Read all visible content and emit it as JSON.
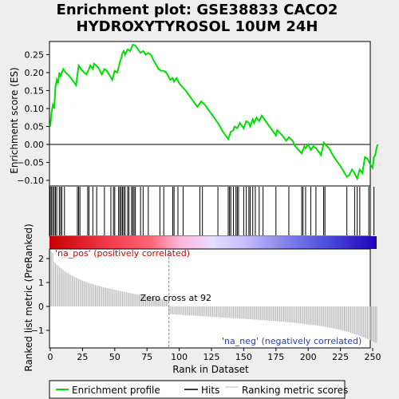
{
  "chart_data": {
    "type": "line",
    "title_line1": "Enrichment plot: GSE38833 CACO2",
    "title_line2": "HYDROXYTYROSOL 10UM 24H",
    "ylabel_top": "Enrichment score (ES)",
    "ylabel_bottom": "Ranked list metric (PreRanked)",
    "xlabel": "Rank in Dataset",
    "xlim": [
      0,
      250
    ],
    "ylim_top": [
      -0.12,
      0.29
    ],
    "ylim_bottom": [
      -1.75,
      2.45
    ],
    "yticks_top": [
      -0.1,
      -0.05,
      0.0,
      0.05,
      0.1,
      0.15,
      0.2,
      0.25
    ],
    "ytick_labels_top": [
      "−0.10",
      "−0.05",
      "0.00",
      "0.05",
      "0.10",
      "0.15",
      "0.20",
      "0.25"
    ],
    "yticks_bottom": [
      -1,
      0,
      1,
      2
    ],
    "ytick_labels_bottom": [
      "−1",
      "0",
      "1",
      "2"
    ],
    "xticks": [
      0,
      25,
      50,
      75,
      100,
      125,
      150,
      175,
      200,
      225,
      250
    ],
    "xtick_labels": [
      "0",
      "25",
      "50",
      "75",
      "100",
      "125",
      "150",
      "175",
      "200",
      "225",
      "250"
    ],
    "es_curve": [
      [
        0,
        0.05
      ],
      [
        1,
        0.09
      ],
      [
        2,
        0.11
      ],
      [
        3,
        0.1
      ],
      [
        4,
        0.16
      ],
      [
        5,
        0.18
      ],
      [
        6,
        0.17
      ],
      [
        7,
        0.2
      ],
      [
        8,
        0.19
      ],
      [
        10,
        0.21
      ],
      [
        12,
        0.2
      ],
      [
        15,
        0.19
      ],
      [
        18,
        0.175
      ],
      [
        20,
        0.165
      ],
      [
        22,
        0.22
      ],
      [
        25,
        0.205
      ],
      [
        28,
        0.195
      ],
      [
        30,
        0.21
      ],
      [
        31,
        0.22
      ],
      [
        33,
        0.21
      ],
      [
        34,
        0.225
      ],
      [
        37,
        0.215
      ],
      [
        40,
        0.195
      ],
      [
        42,
        0.21
      ],
      [
        44,
        0.205
      ],
      [
        48,
        0.18
      ],
      [
        50,
        0.205
      ],
      [
        52,
        0.2
      ],
      [
        54,
        0.23
      ],
      [
        55,
        0.24
      ],
      [
        56,
        0.255
      ],
      [
        57,
        0.26
      ],
      [
        58,
        0.25
      ],
      [
        60,
        0.265
      ],
      [
        62,
        0.26
      ],
      [
        64,
        0.278
      ],
      [
        66,
        0.275
      ],
      [
        68,
        0.265
      ],
      [
        70,
        0.255
      ],
      [
        72,
        0.26
      ],
      [
        74,
        0.25
      ],
      [
        76,
        0.255
      ],
      [
        78,
        0.25
      ],
      [
        80,
        0.235
      ],
      [
        84,
        0.21
      ],
      [
        86,
        0.205
      ],
      [
        88,
        0.205
      ],
      [
        90,
        0.2
      ],
      [
        93,
        0.18
      ],
      [
        95,
        0.185
      ],
      [
        96,
        0.175
      ],
      [
        98,
        0.185
      ],
      [
        100,
        0.17
      ],
      [
        105,
        0.15
      ],
      [
        110,
        0.125
      ],
      [
        113,
        0.11
      ],
      [
        114,
        0.105
      ],
      [
        117,
        0.12
      ],
      [
        120,
        0.11
      ],
      [
        125,
        0.085
      ],
      [
        130,
        0.06
      ],
      [
        134,
        0.035
      ],
      [
        137,
        0.02
      ],
      [
        138,
        0.015
      ],
      [
        140,
        0.035
      ],
      [
        142,
        0.04
      ],
      [
        143,
        0.05
      ],
      [
        145,
        0.045
      ],
      [
        147,
        0.06
      ],
      [
        150,
        0.045
      ],
      [
        152,
        0.065
      ],
      [
        154,
        0.06
      ],
      [
        155,
        0.05
      ],
      [
        157,
        0.07
      ],
      [
        158,
        0.06
      ],
      [
        160,
        0.075
      ],
      [
        162,
        0.065
      ],
      [
        164,
        0.08
      ],
      [
        166,
        0.07
      ],
      [
        170,
        0.05
      ],
      [
        175,
        0.025
      ],
      [
        176,
        0.04
      ],
      [
        180,
        0.025
      ],
      [
        183,
        0.01
      ],
      [
        185,
        0.02
      ],
      [
        188,
        0.01
      ],
      [
        190,
        -0.005
      ],
      [
        195,
        -0.025
      ],
      [
        197,
        -0.005
      ],
      [
        198,
        -0.01
      ],
      [
        200,
        0.0
      ],
      [
        202,
        -0.015
      ],
      [
        204,
        -0.005
      ],
      [
        206,
        -0.01
      ],
      [
        210,
        -0.03
      ],
      [
        212,
        0.005
      ],
      [
        216,
        -0.01
      ],
      [
        220,
        -0.035
      ],
      [
        225,
        -0.06
      ],
      [
        230,
        -0.09
      ],
      [
        232,
        -0.085
      ],
      [
        234,
        -0.07
      ],
      [
        236,
        -0.08
      ],
      [
        238,
        -0.095
      ],
      [
        240,
        -0.07
      ],
      [
        242,
        -0.08
      ],
      [
        244,
        -0.035
      ],
      [
        246,
        -0.04
      ],
      [
        248,
        -0.055
      ],
      [
        250,
        -0.065
      ],
      [
        251,
        -0.035
      ],
      [
        252,
        -0.03
      ],
      [
        253,
        -0.01
      ],
      [
        254,
        0.0
      ]
    ],
    "hits": [
      0,
      1,
      2,
      3,
      4,
      5,
      7,
      8,
      9,
      11,
      21,
      22,
      23,
      29,
      30,
      33,
      36,
      42,
      47,
      49,
      50,
      53,
      54,
      55,
      56,
      57,
      58,
      60,
      61,
      63,
      64,
      65,
      66,
      70,
      72,
      76,
      85,
      88,
      95,
      96,
      99,
      103,
      116,
      118,
      130,
      138,
      139,
      140,
      142,
      144,
      145,
      146,
      150,
      152,
      154,
      155,
      157,
      159,
      162,
      165,
      175,
      185,
      195,
      196,
      198,
      202,
      206,
      212,
      213,
      230,
      236,
      238,
      240,
      247,
      251
    ],
    "rank_metric_range": {
      "start": 2.0,
      "end": -1.5,
      "zero_cross": 92
    },
    "zero_cross_label": "Zero cross at 92",
    "pos_label": "'na_pos' (positively correlated)",
    "neg_label": "'na_neg' (negatively correlated)",
    "legend": [
      "Enrichment profile",
      "Hits",
      "Ranking metric scores"
    ],
    "colors": {
      "es": "#00dd00",
      "hits": "#000000",
      "metric": "#bbbbbb",
      "pos_text": "#cc0000",
      "neg_text": "#1f3dbf",
      "zero_line": "#888888"
    },
    "color_bar": [
      "#d11010",
      "#e01818",
      "#f04040",
      "#ff7080",
      "#ffb0d0",
      "#d8c8ff",
      "#9090f0",
      "#5060e0",
      "#2010c0"
    ]
  }
}
